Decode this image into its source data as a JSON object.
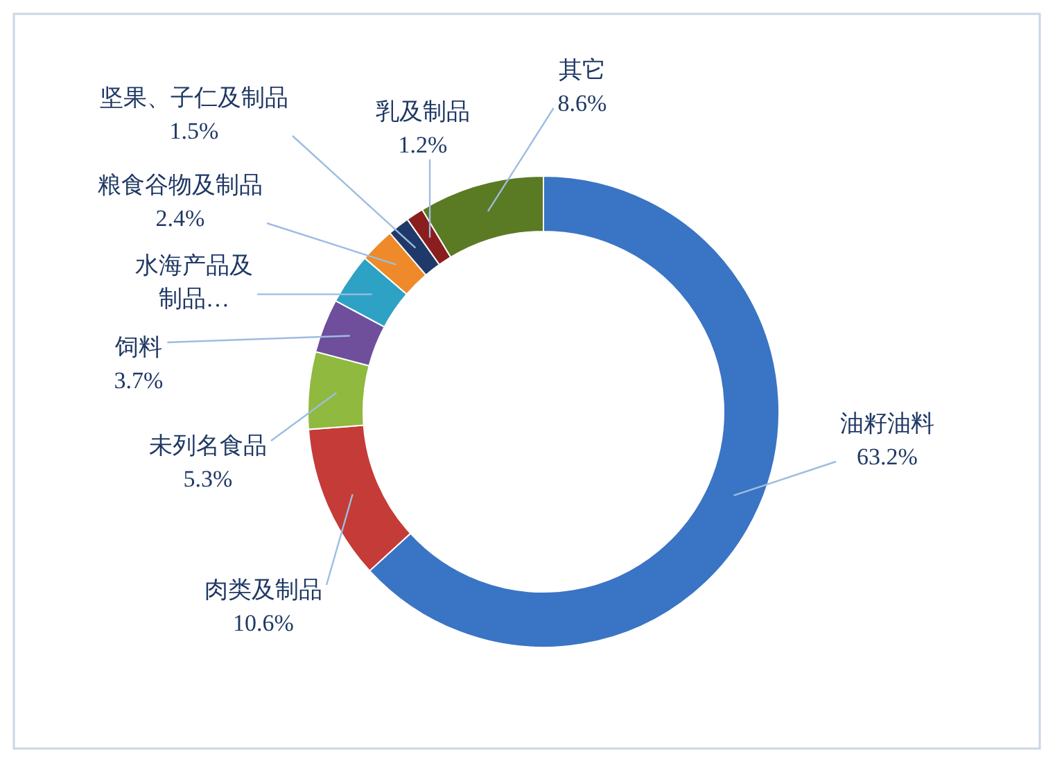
{
  "chart_data": {
    "type": "donut",
    "categories": [
      "油籽油料",
      "肉类及制品",
      "未列名食品",
      "饲料",
      "水海产品及制品…",
      "粮食谷物及制品",
      "坚果、子仁及制品",
      "乳及制品",
      "其它"
    ],
    "values": [
      63.2,
      10.6,
      5.3,
      3.7,
      3.5,
      2.4,
      1.5,
      1.2,
      8.6
    ],
    "value_labels": [
      "63.2%",
      "10.6%",
      "5.3%",
      "3.7%",
      null,
      "2.4%",
      "1.5%",
      "1.2%",
      "8.6%"
    ],
    "colors": [
      "#3a74c4",
      "#c53b37",
      "#8fb93f",
      "#6f4e9c",
      "#2ea2c4",
      "#ee8a2a",
      "#1f3a6a",
      "#8a1e1e",
      "#5a7a24"
    ]
  }
}
